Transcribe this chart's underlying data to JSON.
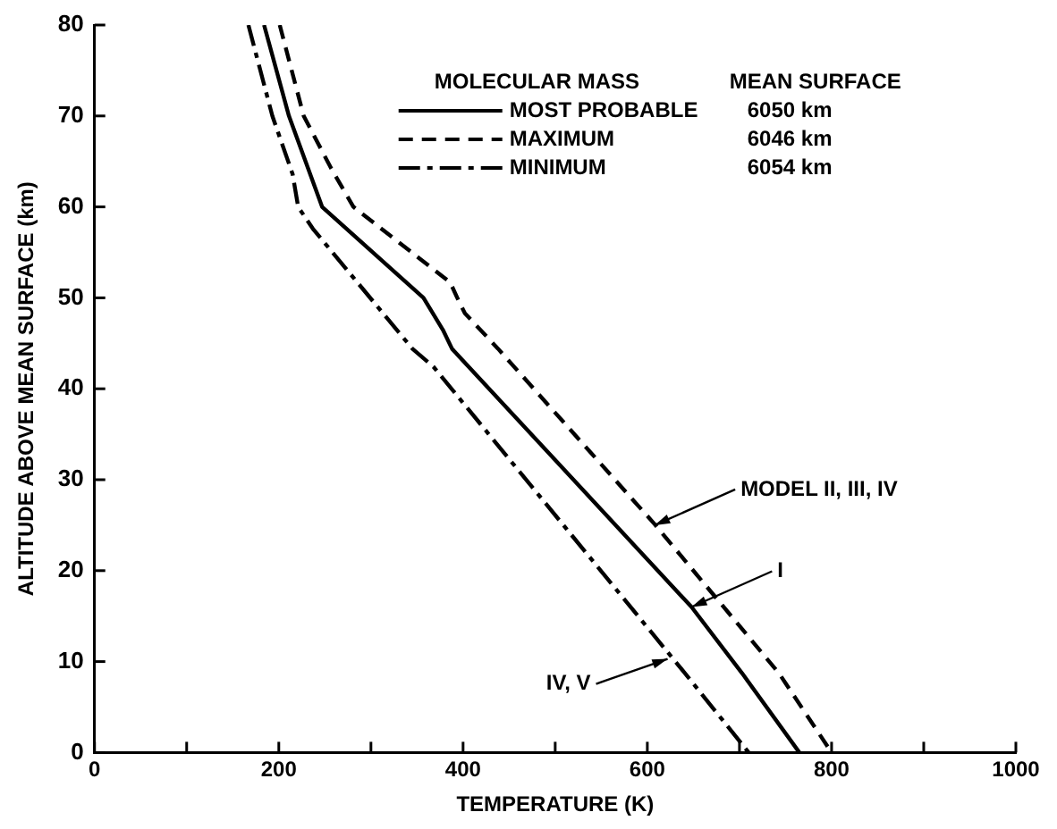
{
  "chart_data": {
    "type": "line",
    "xlabel": "TEMPERATURE (K)",
    "ylabel": "ALTITUDE ABOVE MEAN SURFACE (km)",
    "xlim": [
      0,
      1000
    ],
    "ylim": [
      0,
      80
    ],
    "xticks": [
      0,
      {
        "value": 100,
        "label": null
      },
      200,
      {
        "value": 300,
        "label": null
      },
      400,
      {
        "value": 500,
        "label": null
      },
      600,
      {
        "value": 700,
        "label": null
      },
      800,
      {
        "value": 900,
        "label": null
      },
      1000
    ],
    "yticks": [
      0,
      10,
      20,
      30,
      40,
      50,
      60,
      70,
      80
    ],
    "grid": false,
    "legend": "top right",
    "legend_title": "MOLECULAR MASS",
    "marker": "none",
    "series": [
      {
        "name": "MOST PROBABLE",
        "color": "#000000",
        "line_style": "solid",
        "x": [
          184,
          211,
          247,
          357,
          378,
          388,
          648,
          703,
          765
        ],
        "values": [
          80,
          70,
          60,
          50,
          46.5,
          44.4,
          16,
          8.7,
          0
        ]
      },
      {
        "name": "MAXIMUM",
        "color": "#000000",
        "line_style": "dashed",
        "x": [
          201,
          227,
          257,
          281,
          386,
          396,
          402,
          438,
          608,
          743,
          800
        ],
        "values": [
          80,
          70,
          64.2,
          60,
          51.7,
          49.5,
          48.3,
          44.4,
          25.1,
          8.7,
          0
        ]
      },
      {
        "name": "MINIMUM",
        "color": "#000000",
        "line_style": "dashdot",
        "x": [
          167,
          193,
          215,
          221,
          237,
          345,
          368,
          641,
          710
        ],
        "values": [
          80,
          70,
          63.6,
          60,
          57.6,
          44.4,
          42.4,
          8.7,
          0
        ]
      }
    ],
    "annotations": [
      "MEAN SURFACE",
      "6050 km",
      "6046 km",
      "6054 km",
      {
        "text": "MODEL II, III, IV",
        "x": 608,
        "y": 25
      },
      {
        "text": "I",
        "x": 648,
        "y": 16
      },
      {
        "text": "IV, V",
        "x": 622,
        "y": 10.3
      }
    ]
  }
}
